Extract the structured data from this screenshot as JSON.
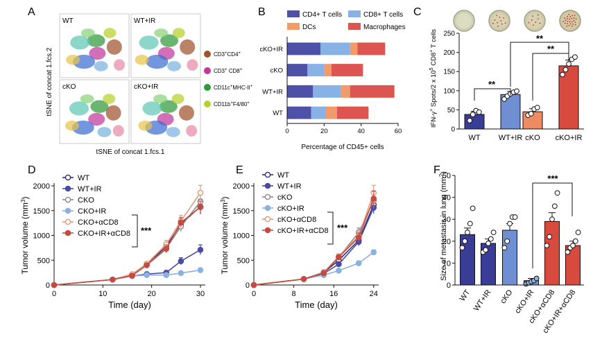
{
  "colors": {
    "wt": "#3a3d96",
    "wtir": "#6f8fd2",
    "ko": "#ee8b62",
    "koir": "#d94a3e",
    "cd4": "#4e51a8",
    "cd8": "#88b2e6",
    "dcs": "#f19a6a",
    "macro": "#dd5550",
    "line_wt": "#2d2f7a",
    "line_wtir": "#4b4aa6",
    "line_ko": "#888888",
    "line_koir": "#8cb1df",
    "line_cd8": "#e09a7e",
    "line_ir_cd8": "#c64a3f",
    "cluster_cd4": "#a0522d",
    "cluster_cd8": "#c2389a",
    "cluster_dc": "#2f9a3b",
    "cluster_macro": "#b7cf2d"
  },
  "panelA": {
    "label": "A",
    "ylabel": "tSNE of concat 1.fcs.2",
    "xlabel": "tSNE of concat 1.fcs.1",
    "tiles": [
      "WT",
      "WT+IR",
      "cKO",
      "cKO+IR"
    ],
    "legend": [
      {
        "name": "CD3+CD4+",
        "base": "CD3",
        "sup1": "+",
        "mid": "CD4",
        "sup2": "+",
        "color": "#a0522d"
      },
      {
        "name": "CD3+ CD8+",
        "base": "CD3",
        "sup1": "+",
        "mid": " CD8",
        "sup2": "+",
        "color": "#c2389a"
      },
      {
        "name": "CD11c+MHC-II+",
        "base": "CD11c",
        "sup1": "+",
        "mid": "MHC-II",
        "sup2": "+",
        "color": "#2f9a3b"
      },
      {
        "name": "CD11b+F4/80+",
        "base": "CD11b",
        "sup1": "+",
        "mid": "F4/80",
        "sup2": "+",
        "color": "#b7cf2d"
      }
    ]
  },
  "panelB": {
    "label": "B",
    "legend": [
      "CD4+ T cells",
      "CD8+ T cells",
      "DCs",
      "Macrophages"
    ]
  },
  "panelC": {
    "label": "C",
    "ylabel_parts": {
      "a": "IFN-γ",
      "a_sup": "+",
      "b": " Spots/2 x 10",
      "b_sup": "5",
      "c": " CD8",
      "c_sup": "+",
      "d": " T cells"
    },
    "sig": [
      "**",
      "**",
      "**"
    ]
  },
  "panelD": {
    "label": "D",
    "sig": "***"
  },
  "panelE": {
    "label": "E",
    "sig": "***"
  },
  "panelF": {
    "label": "F",
    "ylabel": "Size of metastasis in lung (mm",
    "ylabel_sup": "2",
    "ylabel_end": ")",
    "sig": "***"
  },
  "chart_data": [
    {
      "id": "B",
      "type": "bar",
      "orientation": "horizontal",
      "stacked": true,
      "categories": [
        "cKO+IR",
        "cKO",
        "WT+IR",
        "WT"
      ],
      "series": [
        {
          "name": "CD4+ T cells",
          "values": [
            18,
            11,
            14,
            13
          ]
        },
        {
          "name": "CD8+ T cells",
          "values": [
            16,
            9,
            15,
            8
          ]
        },
        {
          "name": "DCs",
          "values": [
            4,
            4,
            5,
            6
          ]
        },
        {
          "name": "Macrophages",
          "values": [
            15,
            17,
            24,
            17
          ]
        }
      ],
      "xlabel": "Percentage of  CD45+ cells",
      "xlim": [
        0,
        60
      ],
      "xticks": [
        0,
        20,
        40,
        60
      ]
    },
    {
      "id": "C",
      "type": "bar",
      "categories": [
        "WT",
        "WT+IR",
        "cKO",
        "cKO+IR"
      ],
      "values": [
        38,
        90,
        45,
        165
      ],
      "errors": [
        8,
        8,
        8,
        15
      ],
      "points": [
        [
          22,
          38,
          48,
          44
        ],
        [
          78,
          86,
          92,
          96,
          99
        ],
        [
          36,
          40,
          52,
          56
        ],
        [
          142,
          155,
          170,
          182,
          188
        ]
      ],
      "ylabel": "IFN-γ+ Spots/2 x 105 CD8+ T cells",
      "ylim": [
        0,
        250
      ],
      "yticks": [
        0,
        50,
        100,
        150,
        200,
        250
      ]
    },
    {
      "id": "D",
      "type": "line",
      "xlabel": "Time (day)",
      "ylabel": "Tumor volume (mm3)",
      "xlim": [
        0,
        31
      ],
      "ylim": [
        0,
        2000
      ],
      "xticks": [
        0,
        10,
        20,
        30
      ],
      "yticks": [
        0,
        500,
        1000,
        1500,
        2000
      ],
      "x": [
        0,
        12,
        16,
        19,
        23,
        26,
        30
      ],
      "series": [
        {
          "name": "WT",
          "values": [
            0,
            110,
            210,
            420,
            780,
            1230,
            1580
          ],
          "errors": [
            0,
            15,
            30,
            40,
            80,
            100,
            150
          ]
        },
        {
          "name": "WT+IR",
          "values": [
            0,
            110,
            180,
            220,
            250,
            480,
            710
          ],
          "errors": [
            0,
            15,
            25,
            30,
            40,
            70,
            100
          ]
        },
        {
          "name": "CKO",
          "values": [
            0,
            110,
            200,
            410,
            740,
            1180,
            1680
          ],
          "errors": [
            0,
            15,
            30,
            40,
            80,
            100,
            150
          ]
        },
        {
          "name": "CKO+IR",
          "values": [
            0,
            110,
            180,
            200,
            200,
            240,
            300
          ],
          "errors": [
            0,
            15,
            20,
            25,
            30,
            30,
            40
          ]
        },
        {
          "name": "CKO+αCD8",
          "values": [
            0,
            110,
            220,
            430,
            820,
            1290,
            1860
          ],
          "errors": [
            0,
            15,
            30,
            40,
            80,
            110,
            150
          ]
        },
        {
          "name": "CKO+IR+αCD8",
          "values": [
            0,
            110,
            190,
            400,
            730,
            1260,
            1570
          ],
          "errors": [
            0,
            15,
            30,
            40,
            80,
            100,
            120
          ]
        }
      ]
    },
    {
      "id": "E",
      "type": "line",
      "xlabel": "Time (day)",
      "ylabel": "Tumor volume (mm3)",
      "xlim": [
        0,
        25
      ],
      "ylim": [
        0,
        2000
      ],
      "xticks": [
        0,
        8,
        16,
        24
      ],
      "yticks": [
        0,
        500,
        1000,
        1500,
        2000
      ],
      "x": [
        0,
        10,
        14,
        17,
        21,
        24
      ],
      "series": [
        {
          "name": "WT",
          "values": [
            0,
            120,
            250,
            500,
            900,
            1620
          ],
          "errors": [
            0,
            15,
            30,
            50,
            90,
            150
          ]
        },
        {
          "name": "WT+IR",
          "values": [
            0,
            120,
            230,
            420,
            870,
            1560
          ],
          "errors": [
            0,
            15,
            30,
            50,
            80,
            120
          ]
        },
        {
          "name": "cKO",
          "values": [
            0,
            120,
            260,
            560,
            1060,
            1700
          ],
          "errors": [
            0,
            15,
            30,
            50,
            90,
            150
          ]
        },
        {
          "name": "cKO+IR",
          "values": [
            0,
            120,
            200,
            290,
            440,
            660
          ],
          "errors": [
            0,
            15,
            25,
            30,
            40,
            50
          ]
        },
        {
          "name": "cKO+αCD8",
          "values": [
            0,
            120,
            250,
            580,
            990,
            1860
          ],
          "errors": [
            0,
            15,
            30,
            50,
            90,
            150
          ]
        },
        {
          "name": "cKO+IR+αCD8",
          "values": [
            0,
            120,
            240,
            560,
            960,
            1740
          ],
          "errors": [
            0,
            15,
            30,
            50,
            90,
            150
          ]
        }
      ]
    },
    {
      "id": "F",
      "type": "bar",
      "categories": [
        "WT",
        "WT+IR",
        "cKO",
        "cKO+IR",
        "cKO+αCD8",
        "cKO+IR+αCD8"
      ],
      "values": [
        23,
        19,
        25,
        2,
        29,
        18
      ],
      "errors": [
        3,
        2,
        3,
        1,
        4,
        2
      ],
      "points": [
        [
          17,
          20,
          24,
          28,
          35
        ],
        [
          15,
          16,
          19,
          21,
          24
        ],
        [
          17,
          20,
          28,
          31,
          31
        ],
        [
          0.5,
          1,
          1.5,
          2,
          3
        ],
        [
          18,
          22,
          30,
          36,
          42
        ],
        [
          15,
          17,
          18,
          20,
          24
        ]
      ],
      "ylabel": "Size of metastasis in lung (mm2)",
      "ylim": [
        0,
        50
      ],
      "yticks": [
        0,
        10,
        20,
        30,
        40,
        50
      ]
    }
  ]
}
